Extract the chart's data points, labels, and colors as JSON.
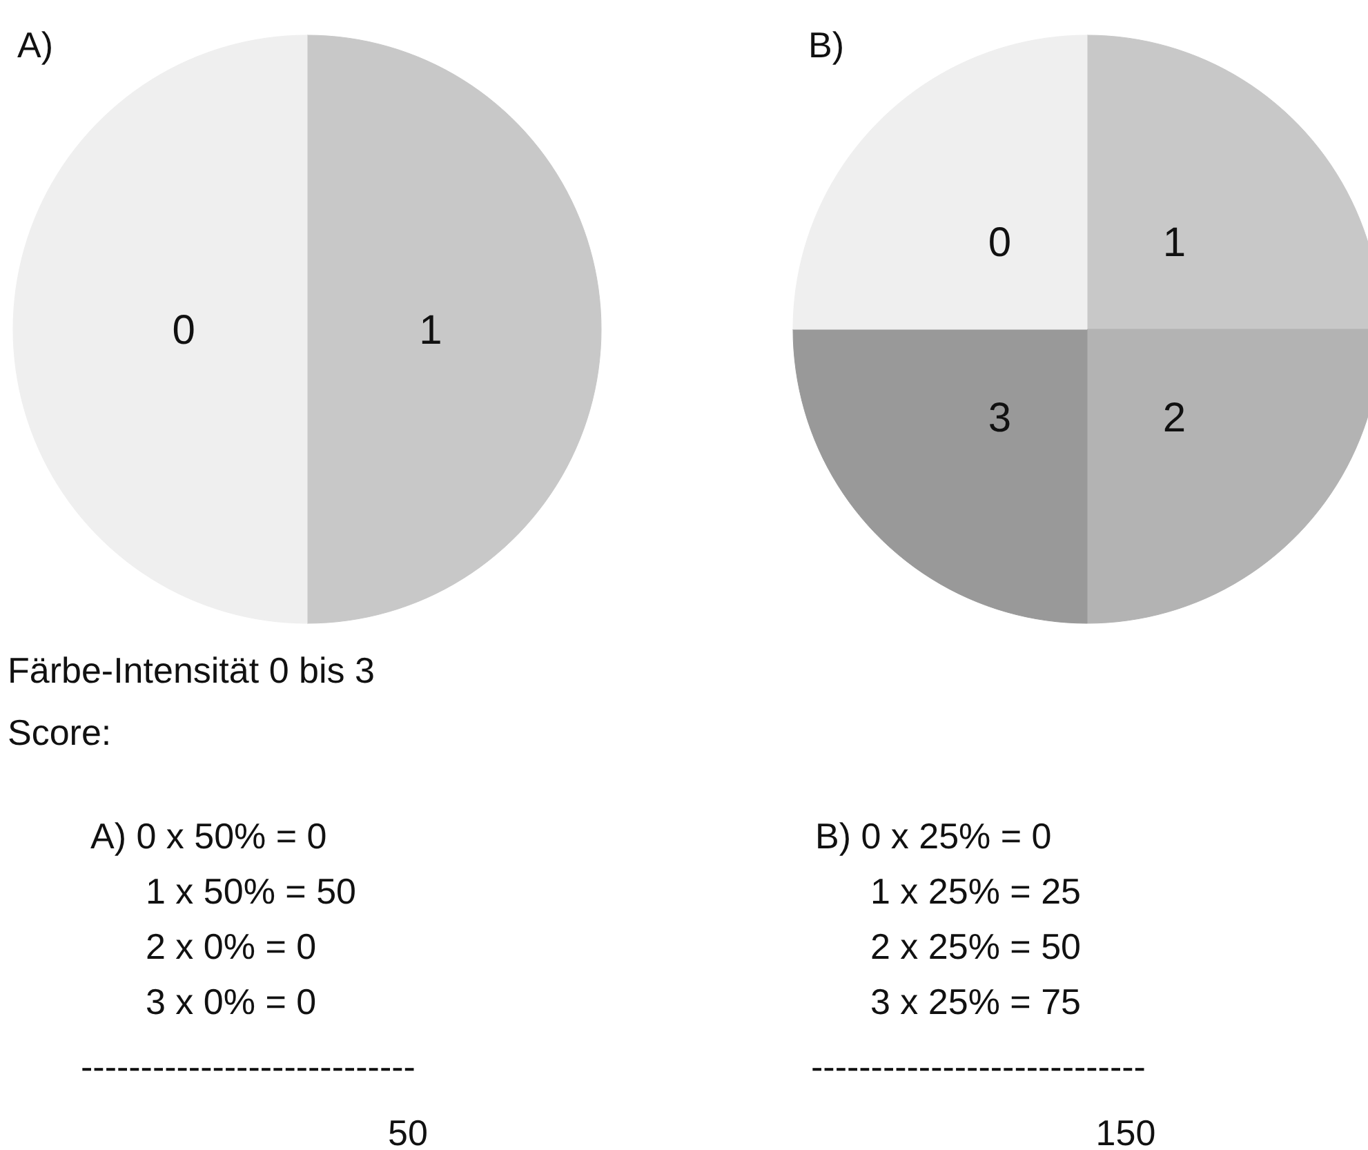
{
  "chart_data": [
    {
      "type": "pie",
      "title": "A)",
      "categories": [
        "1",
        "0"
      ],
      "values": [
        50,
        50
      ],
      "colors": [
        "#c8c8c8",
        "#efefef"
      ],
      "legend": false,
      "annotations": [
        "Färbe-Intensität 0 bis 3",
        "Score:",
        "A)  0 x 50% =  0",
        "1 x 50% = 50",
        "2 x 0%   =  0",
        "3 x 0%    =  0",
        "----------------------------",
        "50"
      ]
    },
    {
      "type": "pie",
      "title": "B)",
      "categories": [
        "1",
        "2",
        "3",
        "0"
      ],
      "values": [
        25,
        25,
        25,
        25
      ],
      "colors": [
        "#c8c8c8",
        "#b3b3b3",
        "#999999",
        "#efefef"
      ],
      "legend": false,
      "annotations": [
        "B)  0 x 25% =  0",
        "1 x 25% = 25",
        "2 x 25% = 50",
        "3 x 25% = 75",
        "----------------------------",
        "150"
      ]
    }
  ]
}
